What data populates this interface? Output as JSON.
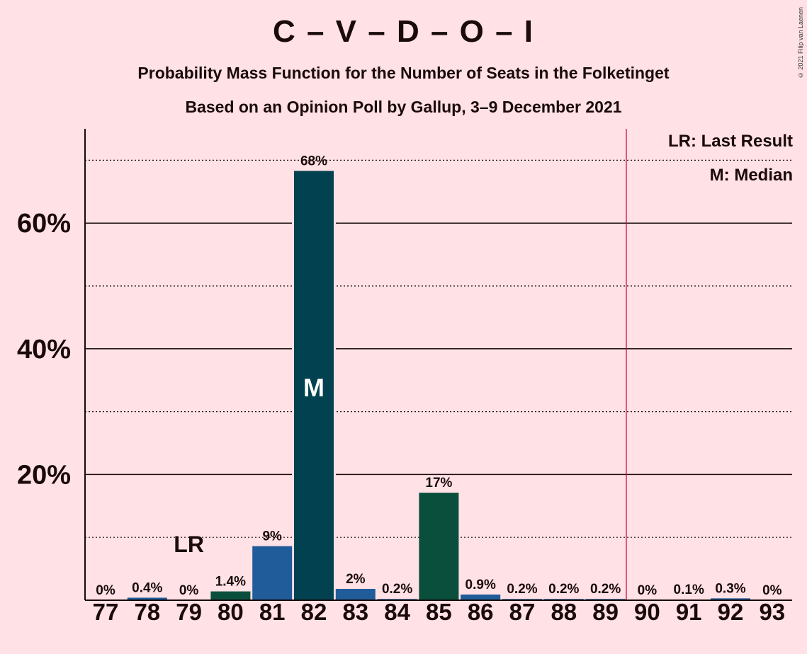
{
  "title": "C – V – D – O – I",
  "subtitle1": "Probability Mass Function for the Number of Seats in the Folketinget",
  "subtitle2": "Based on an Opinion Poll by Gallup, 3–9 December 2021",
  "copyright": "© 2021 Filip van Laenen",
  "legend": {
    "last_result": "LR: Last Result",
    "median": "M: Median"
  },
  "colors": {
    "background": "#FFE1E6",
    "majority_line": "#C0003A"
  },
  "chart_data": {
    "type": "bar",
    "categories": [
      "77",
      "78",
      "79",
      "80",
      "81",
      "82",
      "83",
      "84",
      "85",
      "86",
      "87",
      "88",
      "89",
      "90",
      "91",
      "92",
      "93"
    ],
    "values": [
      0,
      0.4,
      0,
      1.4,
      8.6,
      68.3,
      1.8,
      0.2,
      17.1,
      0.9,
      0.2,
      0.2,
      0.2,
      0,
      0.1,
      0.3,
      0
    ],
    "labels": [
      "0%",
      "0.4%",
      "0%",
      "1.4%",
      "9%",
      "68%",
      "2%",
      "0.2%",
      "17%",
      "0.9%",
      "0.2%",
      "0.2%",
      "0.2%",
      "0%",
      "0.1%",
      "0.3%",
      "0%"
    ],
    "bar_colors": [
      "#1F5C99",
      "#1F5C99",
      "#1F5C99",
      "#0A4F3C",
      "#1F5C99",
      "#02414F",
      "#1F5C99",
      "#1F5C99",
      "#0A4F3C",
      "#1F5C99",
      "#1F5C99",
      "#1F5C99",
      "#1F5C99",
      "#1F5C99",
      "#1F5C99",
      "#1F5C99",
      "#1F5C99"
    ],
    "ylim": [
      0,
      75
    ],
    "y_ticks": [
      20,
      40,
      60
    ],
    "y_tick_labels": [
      "20%",
      "40%",
      "60%"
    ],
    "y_minor_ticks": [
      10,
      30,
      50,
      70
    ],
    "last_result": {
      "seat": "79",
      "label": "LR"
    },
    "median": {
      "seat": "82",
      "label": "M"
    },
    "majority_after": "89"
  }
}
